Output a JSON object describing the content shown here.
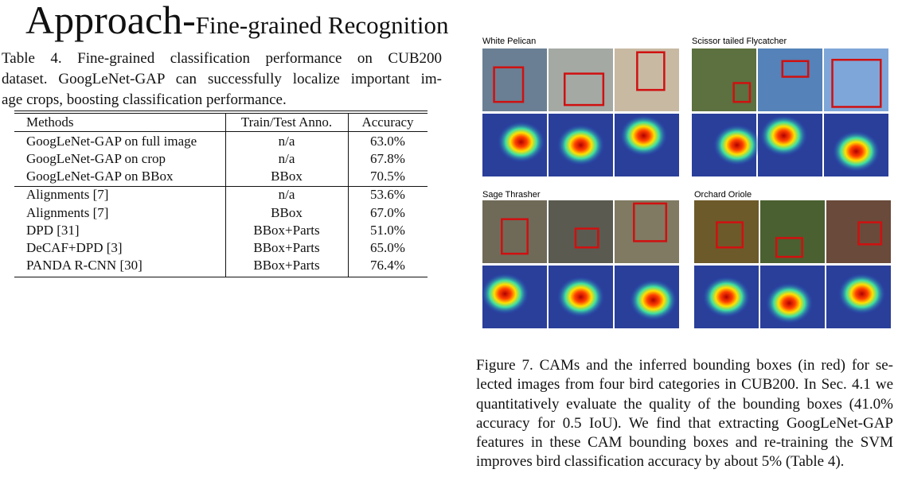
{
  "header": {
    "title": "Approach-",
    "subtitle": "Fine-grained Recognition"
  },
  "table": {
    "caption": [
      "Table 4. Fine-grained classification performance on CUB200",
      "dataset. GoogLeNet-GAP can successfully localize important im-",
      "age crops, boosting classification performance."
    ],
    "columns": [
      "Methods",
      "Train/Test Anno.",
      "Accuracy"
    ],
    "rows": [
      [
        "GoogLeNet-GAP on full image",
        "n/a",
        "63.0%"
      ],
      [
        "GoogLeNet-GAP on crop",
        "n/a",
        "67.8%"
      ],
      [
        "GoogLeNet-GAP on BBox",
        "BBox",
        "70.5%"
      ],
      [
        "Alignments [7]",
        "n/a",
        "53.6%"
      ],
      [
        "Alignments [7]",
        "BBox",
        "67.0%"
      ],
      [
        "DPD [31]",
        "BBox+Parts",
        "51.0%"
      ],
      [
        "DeCAF+DPD [3]",
        "BBox+Parts",
        "65.0%"
      ],
      [
        "PANDA R-CNN [30]",
        "BBox+Parts",
        "76.4%"
      ]
    ]
  },
  "figure": {
    "groups": [
      "White Pelican",
      "Scissor tailed Flycatcher",
      "Sage Thrasher",
      "Orchard Oriole"
    ],
    "caption": [
      "Figure 7. CAMs and the inferred bounding boxes (in red) for se-",
      "lected images from four bird categories in CUB200. In Sec. 4.1 we",
      "quantitatively evaluate the quality of the bounding boxes (41.0%",
      "accuracy for 0.5 IoU). We find that extracting GoogLeNet-GAP",
      "features in these CAM bounding boxes and re-training the SVM",
      "improves bird classification accuracy by about 5% (Table 4)."
    ]
  }
}
